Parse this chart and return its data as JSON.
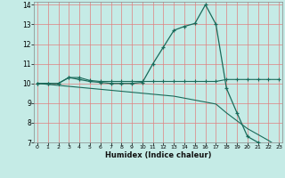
{
  "xlabel": "Humidex (Indice chaleur)",
  "bg_color": "#c5ebe6",
  "grid_color": "#e08080",
  "line_color": "#1a6b5a",
  "xmin": 0,
  "xmax": 23,
  "ymin": 7,
  "ymax": 14,
  "x_ticks": [
    0,
    1,
    2,
    3,
    4,
    5,
    6,
    7,
    8,
    9,
    10,
    11,
    12,
    13,
    14,
    15,
    16,
    17,
    18,
    19,
    20,
    21,
    22,
    23
  ],
  "y_ticks": [
    7,
    8,
    9,
    10,
    11,
    12,
    13,
    14
  ],
  "curve_flat_x": [
    0,
    1,
    2,
    3,
    4,
    5,
    6,
    7,
    8,
    9,
    10,
    11,
    12,
    13,
    14,
    15,
    16,
    17,
    18,
    19,
    20,
    21,
    22,
    23
  ],
  "curve_flat_y": [
    10.0,
    10.0,
    10.0,
    10.3,
    10.3,
    10.15,
    10.1,
    10.1,
    10.1,
    10.1,
    10.1,
    10.1,
    10.1,
    10.1,
    10.1,
    10.1,
    10.1,
    10.1,
    10.2,
    10.2,
    10.2,
    10.2,
    10.2,
    10.2
  ],
  "curve_diag_x": [
    0,
    1,
    2,
    3,
    4,
    5,
    6,
    7,
    8,
    9,
    10,
    11,
    12,
    13,
    14,
    15,
    16,
    17,
    18,
    19,
    20,
    21,
    22,
    23
  ],
  "curve_diag_y": [
    10.0,
    9.95,
    9.9,
    9.85,
    9.8,
    9.75,
    9.7,
    9.65,
    9.6,
    9.55,
    9.5,
    9.45,
    9.4,
    9.35,
    9.25,
    9.15,
    9.05,
    8.95,
    8.5,
    8.1,
    7.7,
    7.4,
    7.1,
    6.75
  ],
  "curve_main_x": [
    0,
    1,
    2,
    3,
    4,
    5,
    6,
    7,
    8,
    9,
    10,
    11,
    12,
    13,
    14,
    15,
    16,
    17,
    18,
    19,
    20,
    21,
    22,
    23
  ],
  "curve_main_y": [
    10.0,
    10.0,
    10.0,
    10.3,
    10.2,
    10.1,
    10.05,
    10.0,
    10.0,
    10.0,
    10.05,
    11.0,
    11.85,
    12.7,
    12.9,
    13.05,
    14.0,
    13.0,
    9.75,
    8.5,
    7.3,
    7.0,
    6.8,
    6.8
  ]
}
